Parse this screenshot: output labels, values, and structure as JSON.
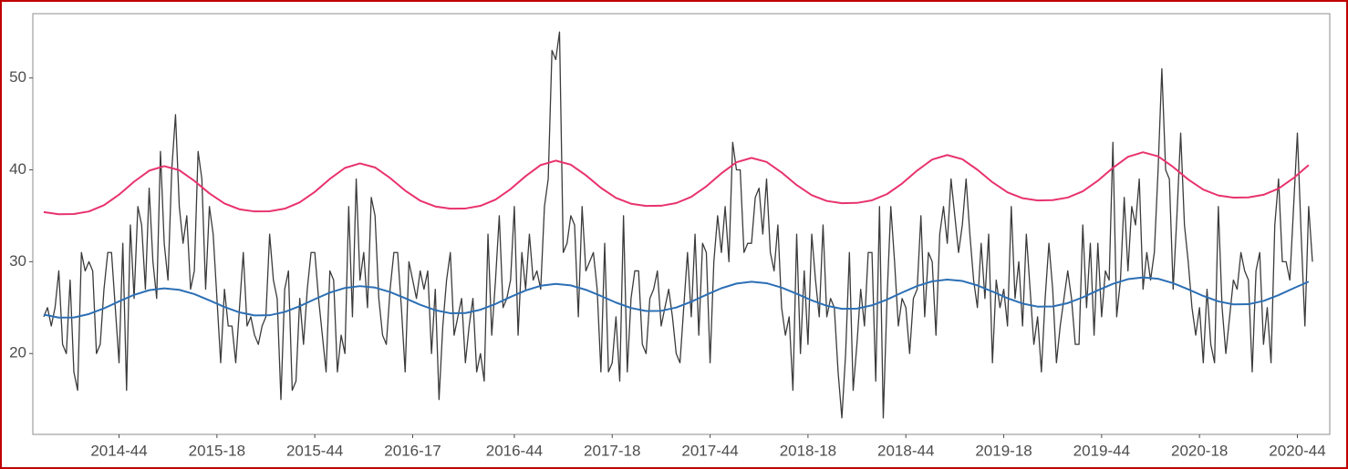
{
  "chart_data": {
    "type": "line",
    "xlim": [
      -2.9,
      341.6
    ],
    "ylim": [
      11.2,
      57.0
    ],
    "yticks": [
      20,
      30,
      40,
      50
    ],
    "xticks": [
      {
        "value": 20,
        "label": "2014-44"
      },
      {
        "value": 46,
        "label": "2015-18"
      },
      {
        "value": 72,
        "label": "2015-44"
      },
      {
        "value": 98,
        "label": "2016-17"
      },
      {
        "value": 125,
        "label": "2016-44"
      },
      {
        "value": 151,
        "label": "2017-18"
      },
      {
        "value": 177,
        "label": "2017-44"
      },
      {
        "value": 203,
        "label": "2018-18"
      },
      {
        "value": 229,
        "label": "2018-44"
      },
      {
        "value": 255,
        "label": "2019-18"
      },
      {
        "value": 281,
        "label": "2019-44"
      },
      {
        "value": 307,
        "label": "2020-18"
      },
      {
        "value": 333,
        "label": "2020-44"
      }
    ],
    "grid": false,
    "series": [
      {
        "color": "#3b3b3b",
        "x": [
          0,
          1,
          2,
          3,
          4,
          5,
          6,
          7,
          8,
          9,
          10,
          11,
          12,
          13,
          14,
          15,
          16,
          17,
          18,
          19,
          20,
          21,
          22,
          23,
          24,
          25,
          26,
          27,
          28,
          29,
          30,
          31,
          32,
          33,
          34,
          35,
          36,
          37,
          38,
          39,
          40,
          41,
          42,
          43,
          44,
          45,
          46,
          47,
          48,
          49,
          50,
          51,
          52,
          53,
          54,
          55,
          56,
          57,
          58,
          59,
          60,
          61,
          62,
          63,
          64,
          65,
          66,
          67,
          68,
          69,
          70,
          71,
          72,
          73,
          74,
          75,
          76,
          77,
          78,
          79,
          80,
          81,
          82,
          83,
          84,
          85,
          86,
          87,
          88,
          89,
          90,
          91,
          92,
          93,
          94,
          95,
          96,
          97,
          98,
          99,
          100,
          101,
          102,
          103,
          104,
          105,
          106,
          107,
          108,
          109,
          110,
          111,
          112,
          113,
          114,
          115,
          116,
          117,
          118,
          119,
          120,
          121,
          122,
          123,
          124,
          125,
          126,
          127,
          128,
          129,
          130,
          131,
          132,
          133,
          134,
          135,
          136,
          137,
          138,
          139,
          140,
          141,
          142,
          143,
          144,
          145,
          146,
          147,
          148,
          149,
          150,
          151,
          152,
          153,
          154,
          155,
          156,
          157,
          158,
          159,
          160,
          161,
          162,
          163,
          164,
          165,
          166,
          167,
          168,
          169,
          170,
          171,
          172,
          173,
          174,
          175,
          176,
          177,
          178,
          179,
          180,
          181,
          182,
          183,
          184,
          185,
          186,
          187,
          188,
          189,
          190,
          191,
          192,
          193,
          194,
          195,
          196,
          197,
          198,
          199,
          200,
          201,
          202,
          203,
          204,
          205,
          206,
          207,
          208,
          209,
          210,
          211,
          212,
          213,
          214,
          215,
          216,
          217,
          218,
          219,
          220,
          221,
          222,
          223,
          224,
          225,
          226,
          227,
          228,
          229,
          230,
          231,
          232,
          233,
          234,
          235,
          236,
          237,
          238,
          239,
          240,
          241,
          242,
          243,
          244,
          245,
          246,
          247,
          248,
          249,
          250,
          251,
          252,
          253,
          254,
          255,
          256,
          257,
          258,
          259,
          260,
          261,
          262,
          263,
          264,
          265,
          266,
          267,
          268,
          269,
          270,
          271,
          272,
          273,
          274,
          275,
          276,
          277,
          278,
          279,
          280,
          281,
          282,
          283,
          284,
          285,
          286,
          287,
          288,
          289,
          290,
          291,
          292,
          293,
          294,
          295,
          296,
          297,
          298,
          299,
          300,
          301,
          302,
          303,
          304,
          305,
          306,
          307,
          308,
          309,
          310,
          311,
          312,
          313,
          314,
          315,
          316,
          317,
          318,
          319,
          320,
          321,
          322,
          323,
          324,
          325,
          326,
          327,
          328,
          329,
          330,
          331,
          332,
          333,
          334,
          335,
          336,
          337
        ],
        "values": [
          24,
          25,
          23,
          25,
          29,
          21,
          20,
          28,
          18,
          16,
          31,
          29,
          30,
          29,
          20,
          21,
          27,
          31,
          31,
          25,
          19,
          32,
          16,
          34,
          26,
          36,
          34,
          27,
          38,
          30,
          26,
          42,
          32,
          28,
          40,
          46,
          36,
          32,
          35,
          27,
          29,
          42,
          39,
          27,
          36,
          33,
          26,
          19,
          27,
          23,
          23,
          19,
          25,
          31,
          23,
          24,
          22,
          21,
          23,
          24,
          33,
          28,
          26,
          15,
          27,
          29,
          16,
          17,
          26,
          21,
          27,
          31,
          31,
          26,
          22,
          18,
          29,
          28,
          18,
          22,
          20,
          36,
          24,
          39,
          28,
          31,
          25,
          37,
          35,
          26,
          22,
          21,
          27,
          31,
          31,
          25,
          18,
          30,
          28,
          26,
          29,
          27,
          29,
          20,
          27,
          15,
          23,
          28,
          31,
          22,
          24,
          26,
          19,
          23,
          26,
          18,
          20,
          17,
          33,
          22,
          28,
          35,
          25,
          26,
          28,
          36,
          22,
          31,
          27,
          33,
          28,
          29,
          27,
          36,
          39,
          53,
          52,
          55,
          31,
          32,
          35,
          34,
          24,
          36,
          29,
          30,
          31,
          27,
          18,
          32,
          18,
          19,
          24,
          17,
          35,
          18,
          26,
          29,
          29,
          21,
          20,
          26,
          27,
          29,
          23,
          25,
          27,
          24,
          20,
          19,
          25,
          31,
          24,
          33,
          22,
          32,
          31,
          19,
          30,
          35,
          31,
          36,
          30,
          43,
          40,
          40,
          31,
          32,
          32,
          37,
          38,
          33,
          39,
          31,
          29,
          34,
          25,
          22,
          24,
          16,
          33,
          20,
          29,
          21,
          33,
          28,
          24,
          34,
          24,
          26,
          25,
          18,
          13,
          20,
          31,
          16,
          21,
          27,
          23,
          31,
          31,
          17,
          36,
          13,
          26,
          36,
          30,
          23,
          26,
          25,
          20,
          26,
          27,
          35,
          24,
          31,
          30,
          22,
          33,
          36,
          32,
          39,
          35,
          31,
          34,
          39,
          33,
          28,
          25,
          32,
          26,
          33,
          19,
          28,
          25,
          27,
          23,
          36,
          26,
          30,
          23,
          33,
          27,
          21,
          24,
          18,
          26,
          32,
          27,
          19,
          23,
          26,
          29,
          26,
          21,
          21,
          34,
          25,
          32,
          22,
          32,
          24,
          29,
          28,
          43,
          24,
          28,
          37,
          29,
          36,
          34,
          39,
          27,
          31,
          28,
          31,
          40,
          51,
          40,
          39,
          27,
          35,
          44,
          34,
          30,
          25,
          22,
          25,
          19,
          27,
          21,
          19,
          36,
          25,
          20,
          24,
          28,
          27,
          31,
          29,
          28,
          18,
          29,
          31,
          21,
          25,
          19,
          34,
          39,
          30,
          30,
          28,
          36,
          44,
          33,
          23,
          36,
          30
        ]
      },
      {
        "color": "#e8336d",
        "x": [
          0,
          4,
          8,
          12,
          16,
          20,
          24,
          28,
          32,
          36,
          40,
          44,
          48,
          52,
          56,
          60,
          64,
          68,
          72,
          76,
          80,
          84,
          88,
          92,
          96,
          100,
          104,
          108,
          112,
          116,
          120,
          124,
          128,
          132,
          136,
          140,
          144,
          148,
          152,
          156,
          160,
          164,
          168,
          172,
          176,
          180,
          184,
          188,
          192,
          196,
          200,
          204,
          208,
          212,
          216,
          220,
          224,
          228,
          232,
          236,
          240,
          244,
          248,
          252,
          256,
          260,
          264,
          268,
          272,
          276,
          280,
          284,
          288,
          292,
          296,
          300,
          304,
          308,
          312,
          316,
          320,
          324,
          328,
          332,
          336
        ],
        "values": [
          35.4,
          35.17,
          35.19,
          35.47,
          36.15,
          37.3,
          38.71,
          39.91,
          40.4,
          39.96,
          38.8,
          37.44,
          36.34,
          35.7,
          35.47,
          35.49,
          35.77,
          36.46,
          37.6,
          39.01,
          40.21,
          40.7,
          40.26,
          39.11,
          37.74,
          36.64,
          36.01,
          35.77,
          35.79,
          36.08,
          36.76,
          37.9,
          39.31,
          40.52,
          41.0,
          40.56,
          39.41,
          38.04,
          36.94,
          36.31,
          36.07,
          36.09,
          36.38,
          37.06,
          38.2,
          39.62,
          40.82,
          41.3,
          40.86,
          39.71,
          38.34,
          37.24,
          36.61,
          36.37,
          36.4,
          36.68,
          37.36,
          38.51,
          39.92,
          41.12,
          41.61,
          41.16,
          40.01,
          38.65,
          37.55,
          36.91,
          36.67,
          36.7,
          36.98,
          37.66,
          38.81,
          40.22,
          41.42,
          41.91,
          41.47,
          40.31,
          38.95,
          37.85,
          37.21,
          36.98,
          37.0,
          37.28,
          37.96,
          39.11,
          40.52
        ]
      },
      {
        "color": "#2c6fb5",
        "x": [
          0,
          4,
          8,
          12,
          16,
          20,
          24,
          28,
          32,
          36,
          40,
          44,
          48,
          52,
          56,
          60,
          64,
          68,
          72,
          76,
          80,
          84,
          88,
          92,
          96,
          100,
          104,
          108,
          112,
          116,
          120,
          124,
          128,
          132,
          136,
          140,
          144,
          148,
          152,
          156,
          160,
          164,
          168,
          172,
          176,
          180,
          184,
          188,
          192,
          196,
          200,
          204,
          208,
          212,
          216,
          220,
          224,
          228,
          232,
          236,
          240,
          244,
          248,
          252,
          256,
          260,
          264,
          268,
          272,
          276,
          280,
          284,
          288,
          292,
          296,
          300,
          304,
          308,
          312,
          316,
          320,
          324,
          328,
          332,
          336
        ],
        "values": [
          24.24,
          23.91,
          23.93,
          24.3,
          24.92,
          25.68,
          26.39,
          26.9,
          27.1,
          26.94,
          26.47,
          25.79,
          25.07,
          24.48,
          24.15,
          24.17,
          24.53,
          25.16,
          25.92,
          26.63,
          27.14,
          27.34,
          27.18,
          26.7,
          26.03,
          25.31,
          24.72,
          24.39,
          24.41,
          24.77,
          25.4,
          26.16,
          26.87,
          27.38,
          27.58,
          27.42,
          26.94,
          26.27,
          25.55,
          24.96,
          24.63,
          24.65,
          25.01,
          25.64,
          26.4,
          27.11,
          27.62,
          27.82,
          27.66,
          27.18,
          26.51,
          25.79,
          25.2,
          24.87,
          24.89,
          25.25,
          25.88,
          26.64,
          27.35,
          27.86,
          28.05,
          27.9,
          27.42,
          26.75,
          26.03,
          25.44,
          25.11,
          25.13,
          25.49,
          26.12,
          26.88,
          27.59,
          28.1,
          28.29,
          28.14,
          27.66,
          26.99,
          26.27,
          25.68,
          25.35,
          25.37,
          25.73,
          26.36,
          27.11,
          27.83
        ]
      }
    ]
  }
}
